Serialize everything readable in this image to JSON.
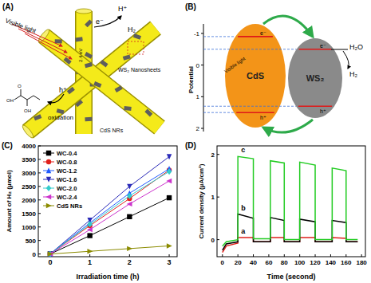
{
  "panel_labels": [
    "(A)",
    "(B)",
    "(C)",
    "(D)"
  ],
  "diagrams": {
    "schematic": {
      "visible_light": "Visible light",
      "h_plus": "H⁺",
      "h2": "H₂",
      "electron": "e⁻",
      "band_gap": "2.4 eV",
      "ws2": "WS₂ Nanosheets",
      "cds": "CdS NRs",
      "hole": "h⁺",
      "oxidation": "oxidation",
      "molecule_labels": [
        "OH",
        "O",
        "OH"
      ]
    },
    "band_diagram": {
      "axis_label": "Potential",
      "ylim": [
        -1.3,
        2.1
      ],
      "yticks": [
        -1,
        0,
        1,
        2
      ],
      "materials": [
        {
          "label": "CdS",
          "cb": -0.9,
          "vb": 1.5,
          "color": "#f39418"
        },
        {
          "label": "WS₂",
          "cb": -0.5,
          "vb": 1.3,
          "color": "#8a8a8a"
        }
      ],
      "visible_light": "Visible light",
      "electron": "e⁻",
      "hole": "h⁺",
      "reactant": "H₂O",
      "product": "H₂"
    }
  },
  "chart_data": [
    {
      "type": "line",
      "x_label": "Irradiation time (h)",
      "y_label": "Amount of H₂ (μmol)",
      "grid": false,
      "legend": "upper-left",
      "x": [
        0,
        1,
        2,
        3
      ],
      "xlim": [
        -0.3,
        3.2
      ],
      "xticks": [
        0,
        1,
        2,
        3
      ],
      "ylim": [
        -100,
        4000
      ],
      "yticks": [
        0,
        500,
        1000,
        1500,
        2000,
        2500,
        3000,
        3500,
        4000
      ],
      "series": [
        {
          "name": "WC-0.4",
          "color": "#000000",
          "marker": "square",
          "values": [
            0,
            680,
            1380,
            2080
          ]
        },
        {
          "name": "WC-0.8",
          "color": "#e0201b",
          "marker": "circle",
          "values": [
            0,
            1050,
            2050,
            3100
          ]
        },
        {
          "name": "WC-1.2",
          "color": "#1e5aff",
          "marker": "triangle-up",
          "values": [
            0,
            1150,
            2250,
            3150
          ]
        },
        {
          "name": "WC-1.6",
          "color": "#2a2ab8",
          "marker": "triangle-down",
          "values": [
            0,
            1250,
            2500,
            3600
          ]
        },
        {
          "name": "WC-2.0",
          "color": "#33cccc",
          "marker": "diamond",
          "values": [
            0,
            1100,
            2150,
            3050
          ]
        },
        {
          "name": "WC-2.4",
          "color": "#cc33cc",
          "marker": "triangle-left",
          "values": [
            0,
            900,
            1850,
            2700
          ]
        },
        {
          "name": "CdS NRs",
          "color": "#8b8b00",
          "marker": "triangle-right",
          "values": [
            0,
            100,
            200,
            300
          ]
        }
      ]
    },
    {
      "type": "line",
      "x_label": "Time (second)",
      "y_label": "Current density (μA/cm²)",
      "grid": false,
      "x": [
        0,
        5,
        20,
        20,
        40,
        40,
        62,
        62,
        80,
        80,
        100,
        100,
        120,
        120,
        142,
        142,
        160,
        160,
        175
      ],
      "xlim": [
        -7,
        185
      ],
      "xticks": [
        0,
        20,
        40,
        60,
        80,
        100,
        120,
        140,
        160,
        180
      ],
      "ylim": [
        -0.4,
        2.2
      ],
      "yticks": [
        0,
        1,
        2
      ],
      "series": [
        {
          "name": "a",
          "color": "#e0201b",
          "values": [
            -0.3,
            -0.15,
            -0.08,
            0.05,
            0.05,
            -0.05,
            -0.05,
            0.05,
            0.05,
            -0.05,
            -0.05,
            0.05,
            0.05,
            -0.05,
            -0.05,
            0.05,
            0.03,
            -0.05,
            -0.05
          ]
        },
        {
          "name": "b",
          "color": "#000000",
          "values": [
            -0.25,
            -0.1,
            -0.05,
            0.6,
            0.5,
            -0.05,
            -0.05,
            0.52,
            0.45,
            -0.05,
            -0.05,
            0.48,
            0.42,
            -0.05,
            -0.05,
            0.45,
            0.4,
            -0.05,
            -0.05
          ]
        },
        {
          "name": "c",
          "color": "#22cc22",
          "values": [
            -0.15,
            -0.05,
            0,
            1.95,
            1.9,
            0.02,
            0.02,
            1.85,
            1.8,
            0,
            0,
            1.82,
            1.75,
            0,
            0,
            1.68,
            1.62,
            0,
            0
          ]
        }
      ]
    }
  ]
}
